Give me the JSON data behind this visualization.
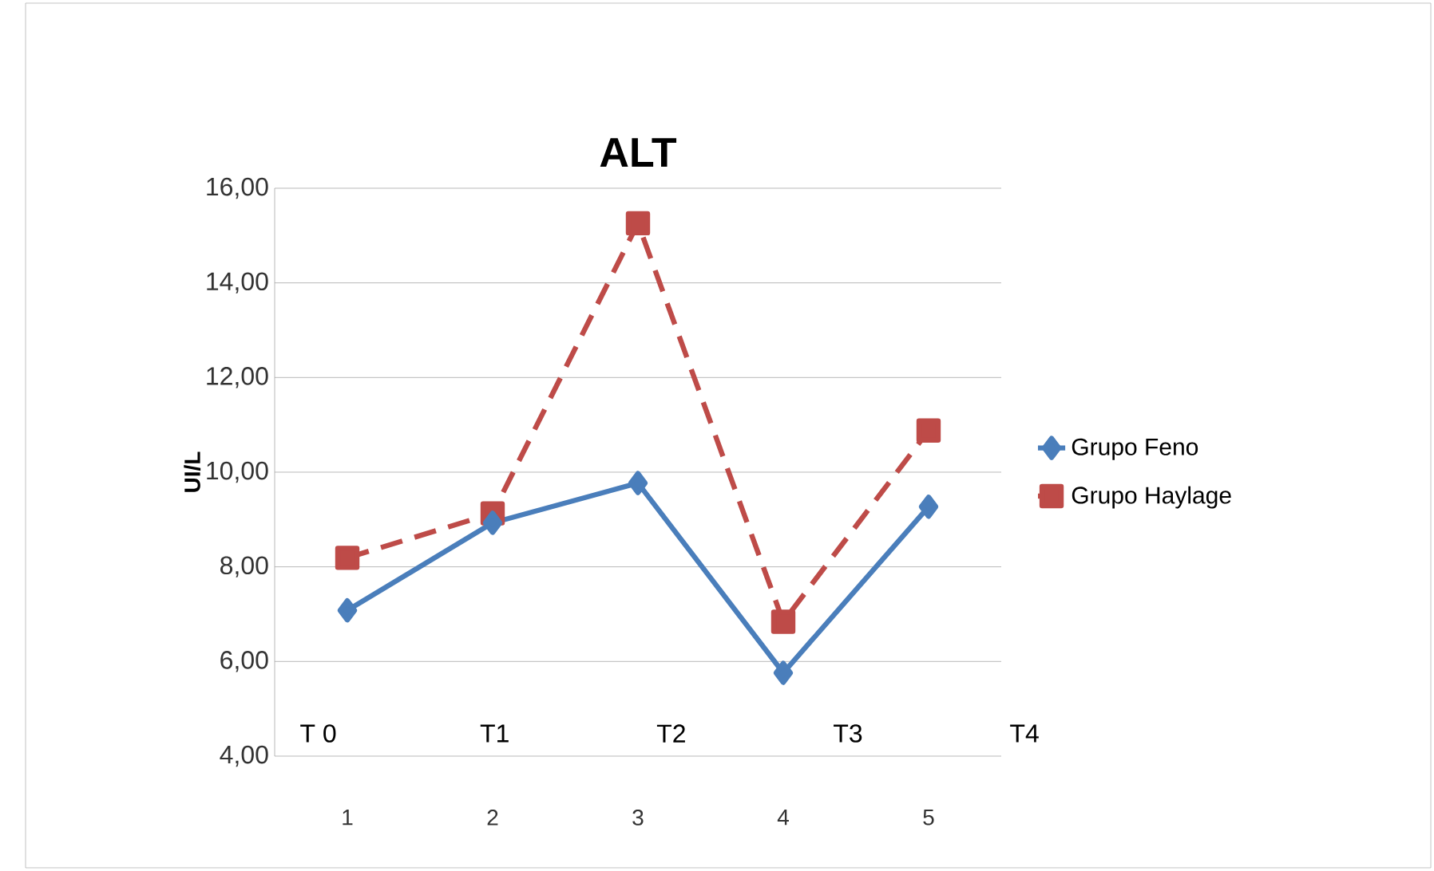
{
  "chart_data": {
    "type": "line",
    "title": "ALT",
    "ylabel": "UI/L",
    "categories": [
      "1",
      "2",
      "3",
      "4",
      "5"
    ],
    "series": [
      {
        "name": "Grupo Feno",
        "color": "#4a7ebb",
        "values": [
          7.08,
          8.93,
          9.77,
          5.76,
          9.27
        ],
        "marker": "diamond",
        "line_style": "solid"
      },
      {
        "name": "Grupo Haylage",
        "color": "#be4b48",
        "values": [
          8.19,
          9.13,
          15.26,
          6.84,
          10.88
        ],
        "marker": "square",
        "line_style": "dashed"
      }
    ],
    "ylim": [
      4,
      16
    ],
    "yticks": [
      {
        "value": 4,
        "label": "4,00"
      },
      {
        "value": 6,
        "label": "6,00"
      },
      {
        "value": 8,
        "label": "8,00"
      },
      {
        "value": 10,
        "label": "10,00"
      },
      {
        "value": 12,
        "label": "12,00"
      },
      {
        "value": 14,
        "label": "14,00"
      },
      {
        "value": 16,
        "label": "16,00"
      }
    ],
    "annotations": [
      "T 0",
      "T1",
      "T2",
      "T3",
      "T4"
    ],
    "grid": "y",
    "legend": "right"
  }
}
